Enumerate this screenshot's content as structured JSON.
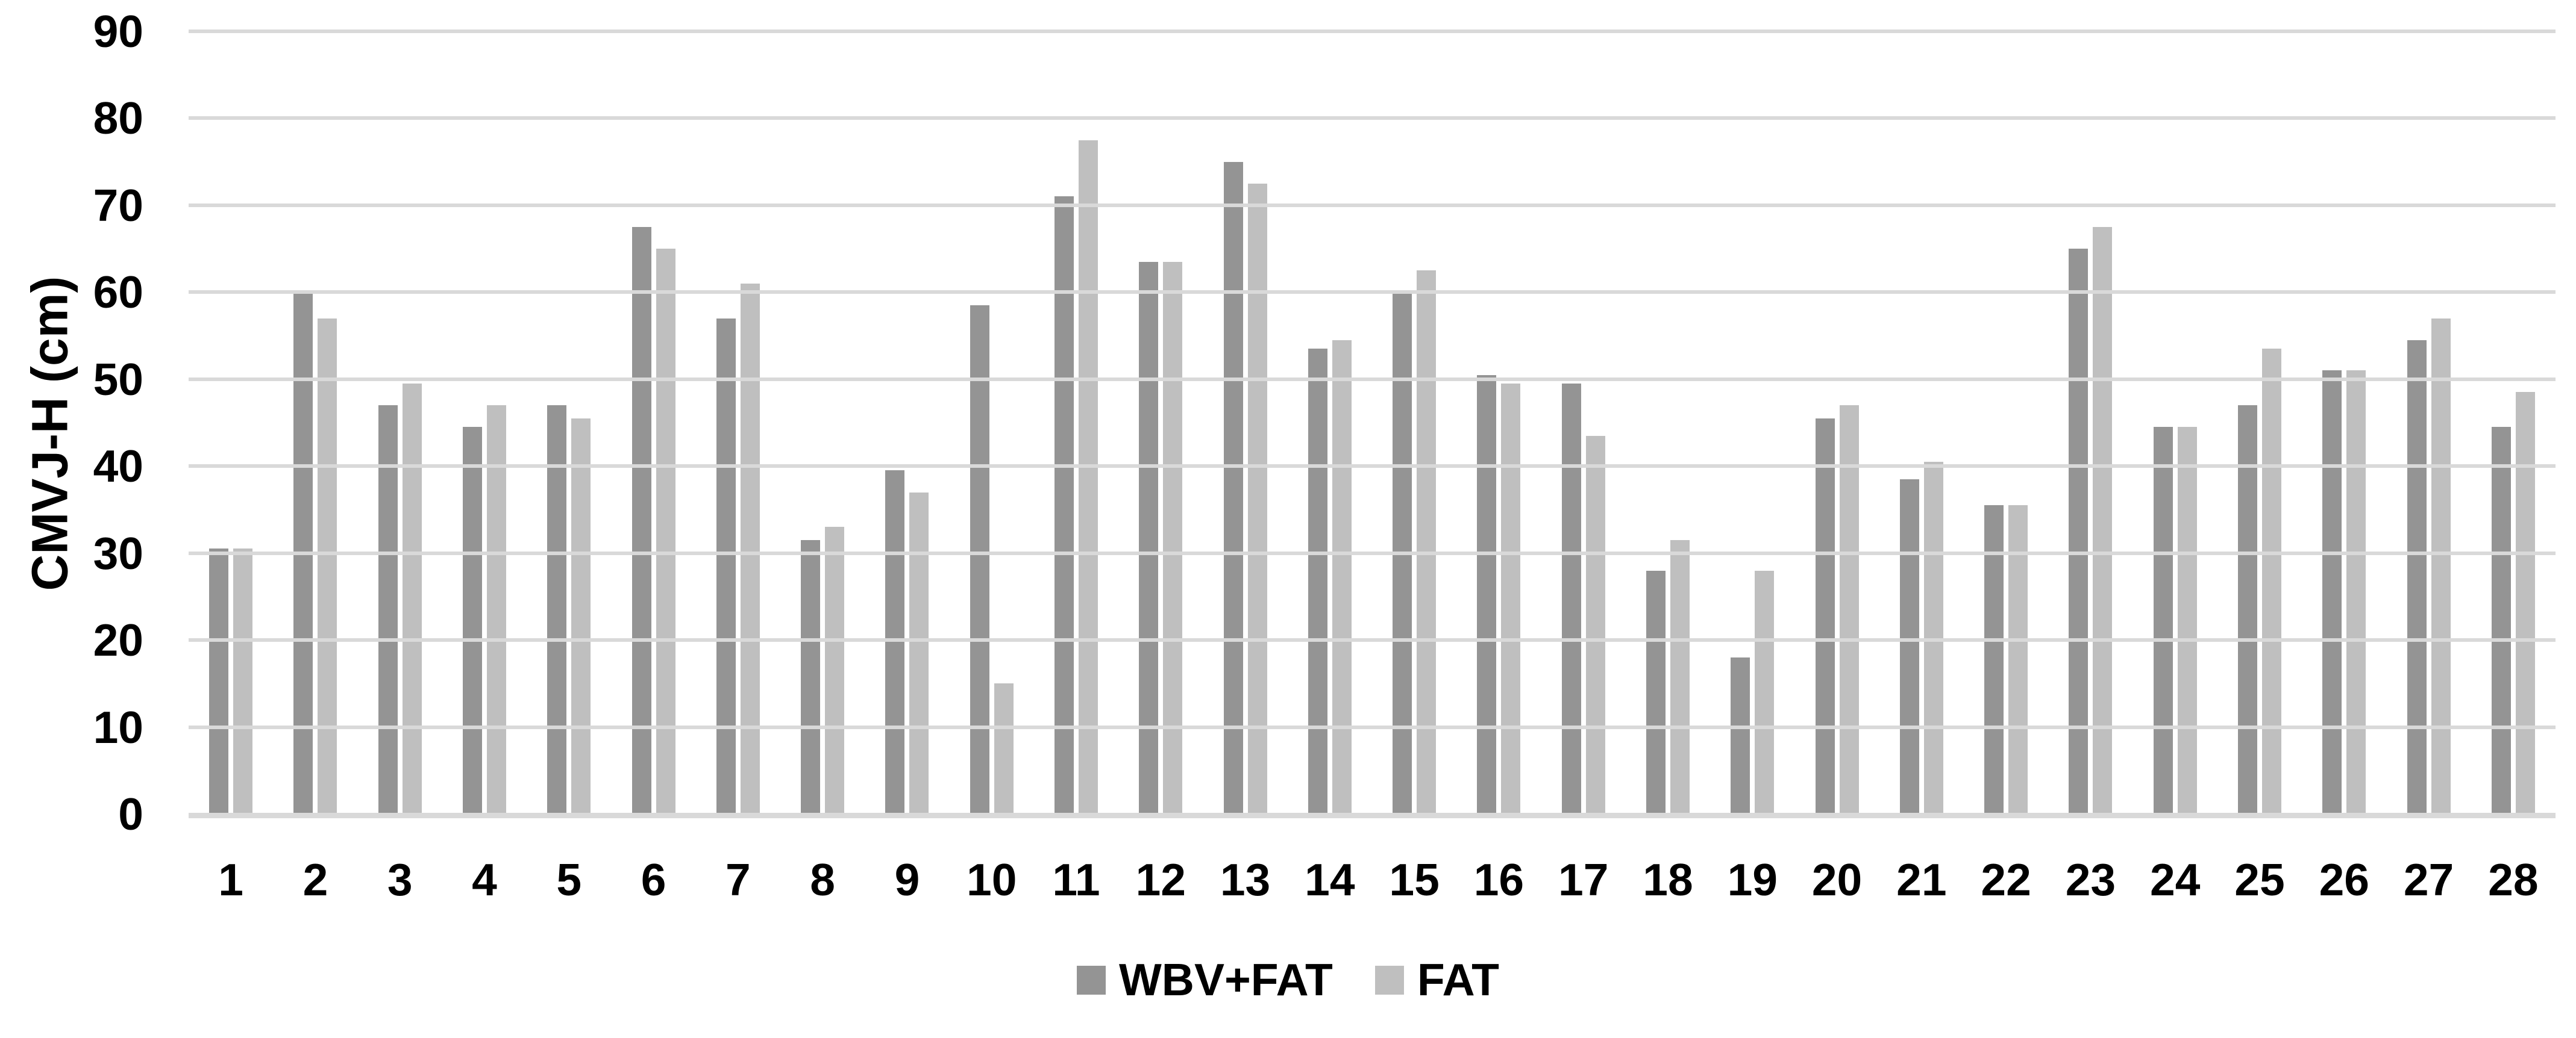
{
  "chart_data": {
    "type": "bar",
    "title": "",
    "xlabel": "",
    "ylabel": "CMVJ-H (cm)",
    "ylim": [
      0,
      90
    ],
    "yticks": [
      0,
      10,
      20,
      30,
      40,
      50,
      60,
      70,
      80,
      90
    ],
    "grid": "horizontal-only, drawn over bars",
    "legend_position": "bottom-center",
    "categories": [
      "1",
      "2",
      "3",
      "4",
      "5",
      "6",
      "7",
      "8",
      "9",
      "10",
      "11",
      "12",
      "13",
      "14",
      "15",
      "16",
      "17",
      "18",
      "19",
      "20",
      "21",
      "22",
      "23",
      "24",
      "25",
      "26",
      "27",
      "28"
    ],
    "series": [
      {
        "name": "WBV+FAT",
        "color": "#949494",
        "values": [
          30.5,
          60,
          47,
          44.5,
          47,
          67.5,
          57,
          31.5,
          39.5,
          58.5,
          71,
          63.5,
          75,
          53.5,
          60,
          50.5,
          49.5,
          28,
          18,
          45.5,
          38.5,
          35.5,
          65,
          44.5,
          47,
          51,
          54.5,
          44.5
        ]
      },
      {
        "name": "FAT",
        "color": "#bfbfbf",
        "values": [
          30.5,
          57,
          49.5,
          47,
          45.5,
          65,
          61,
          33,
          37,
          15,
          77.5,
          63.5,
          72.5,
          54.5,
          62.5,
          49.5,
          43.5,
          31.5,
          28,
          47,
          40.5,
          35.5,
          67.5,
          44.5,
          53.5,
          51,
          57,
          48.5
        ]
      }
    ]
  },
  "colors": {
    "gridline": "#d9d9d9",
    "axis_line": "#d9d9d9",
    "text": "#000000",
    "background": "#ffffff"
  }
}
